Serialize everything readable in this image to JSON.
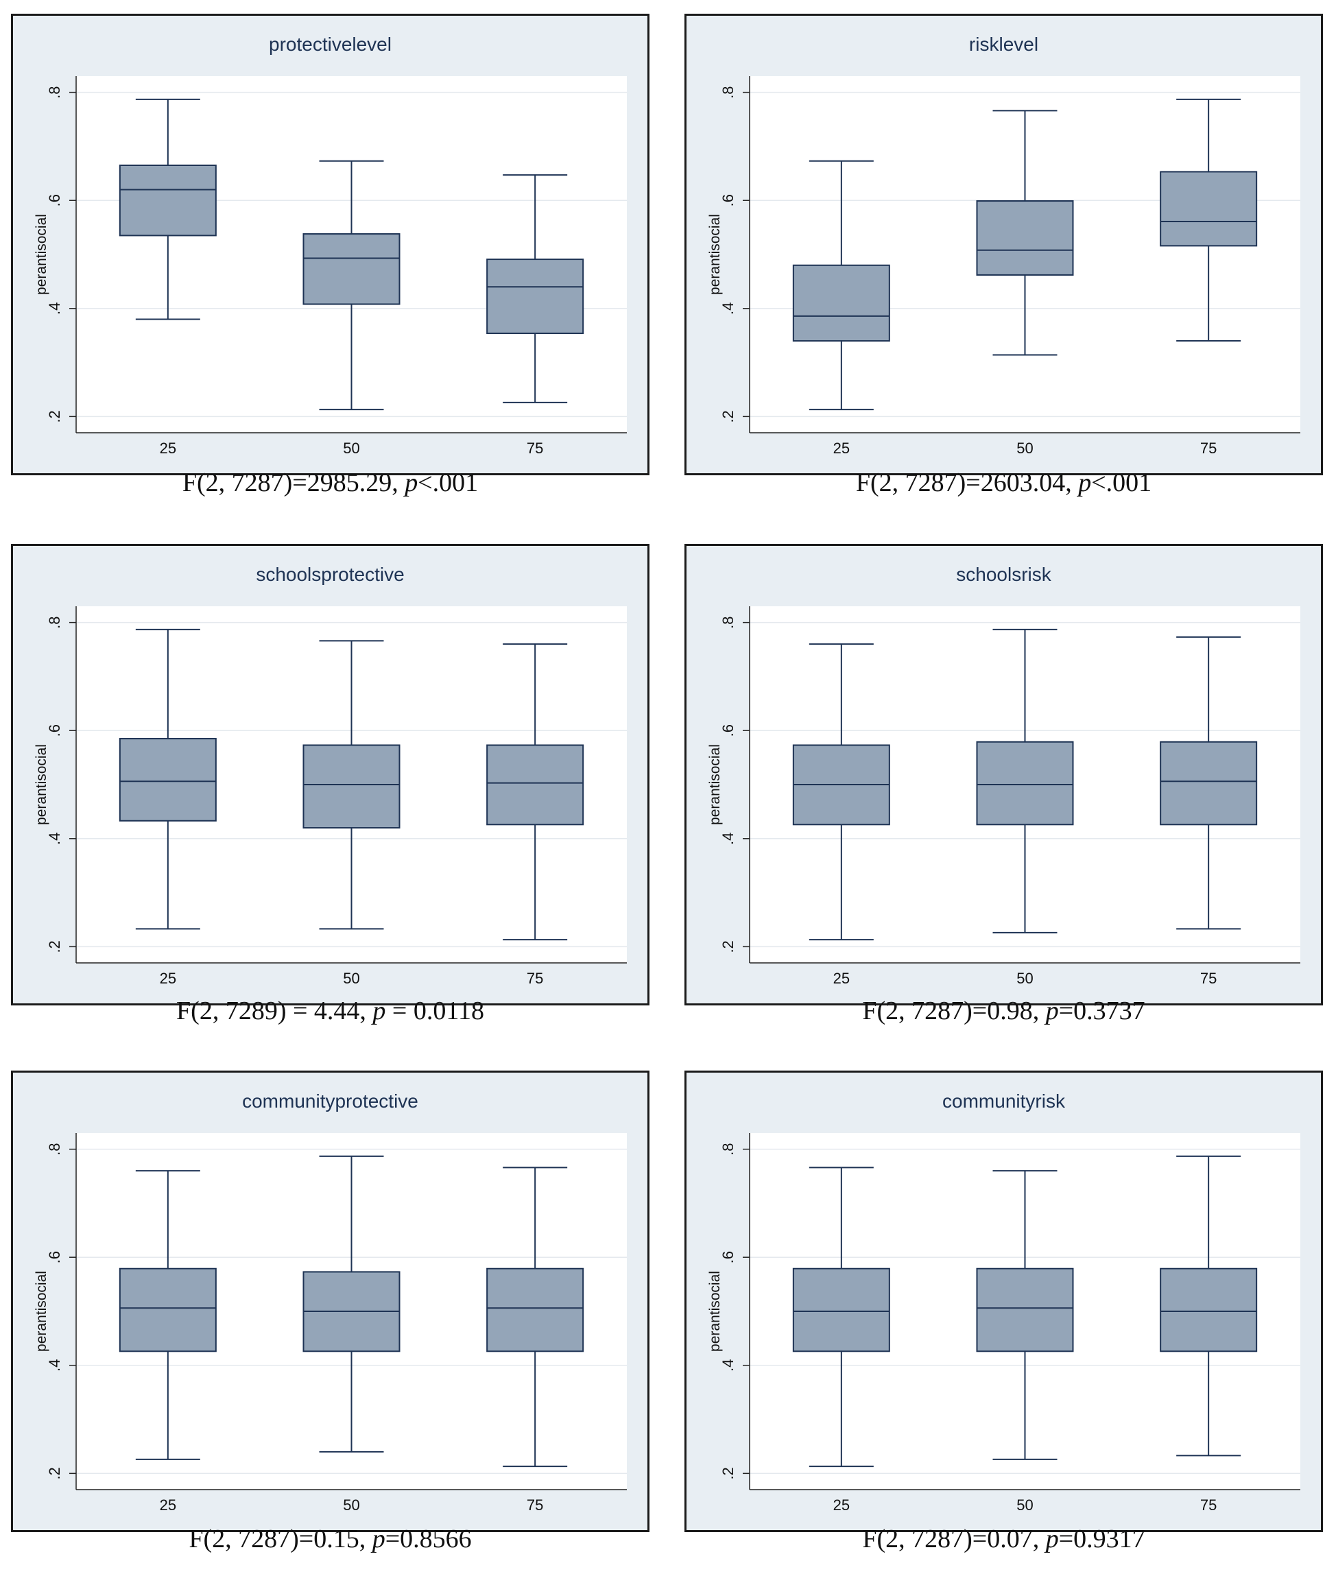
{
  "chart_data": [
    {
      "type": "box",
      "title": "protectivelevel",
      "ylabel": "perantisocial",
      "ylim": [
        0.17,
        0.83
      ],
      "yticks": [
        ".2",
        ".4",
        ".6",
        ".8"
      ],
      "ytick_values": [
        0.2,
        0.4,
        0.6,
        0.8
      ],
      "categories": [
        "25",
        "50",
        "75"
      ],
      "boxes": [
        {
          "min": 0.38,
          "q1": 0.535,
          "median": 0.62,
          "q3": 0.665,
          "max": 0.787
        },
        {
          "min": 0.213,
          "q1": 0.408,
          "median": 0.493,
          "q3": 0.538,
          "max": 0.673
        },
        {
          "min": 0.226,
          "q1": 0.354,
          "median": 0.44,
          "q3": 0.491,
          "max": 0.647
        }
      ],
      "grid": true,
      "caption": {
        "pre": "F(2, 7287)=2985.29, ",
        "p": "p",
        "post": "<.001"
      }
    },
    {
      "type": "box",
      "title": "risklevel",
      "ylabel": "perantisocial",
      "ylim": [
        0.17,
        0.83
      ],
      "yticks": [
        ".2",
        ".4",
        ".6",
        ".8"
      ],
      "ytick_values": [
        0.2,
        0.4,
        0.6,
        0.8
      ],
      "categories": [
        "25",
        "50",
        "75"
      ],
      "boxes": [
        {
          "min": 0.213,
          "q1": 0.34,
          "median": 0.386,
          "q3": 0.48,
          "max": 0.673
        },
        {
          "min": 0.314,
          "q1": 0.462,
          "median": 0.508,
          "q3": 0.599,
          "max": 0.766
        },
        {
          "min": 0.34,
          "q1": 0.516,
          "median": 0.561,
          "q3": 0.653,
          "max": 0.787
        }
      ],
      "grid": true,
      "caption": {
        "pre": "F(2, 7287)=2603.04, ",
        "p": "p",
        "post": "<.001"
      }
    },
    {
      "type": "box",
      "title": "schoolsprotective",
      "ylabel": "perantisocial",
      "ylim": [
        0.17,
        0.83
      ],
      "yticks": [
        ".2",
        ".4",
        ".6",
        ".8"
      ],
      "ytick_values": [
        0.2,
        0.4,
        0.6,
        0.8
      ],
      "categories": [
        "25",
        "50",
        "75"
      ],
      "boxes": [
        {
          "min": 0.233,
          "q1": 0.433,
          "median": 0.506,
          "q3": 0.585,
          "max": 0.787
        },
        {
          "min": 0.233,
          "q1": 0.42,
          "median": 0.5,
          "q3": 0.573,
          "max": 0.766
        },
        {
          "min": 0.213,
          "q1": 0.426,
          "median": 0.503,
          "q3": 0.573,
          "max": 0.76
        }
      ],
      "grid": true,
      "caption": {
        "pre": "F(2, 7289) = 4.44, ",
        "p": "p",
        "post": " = 0.0118"
      }
    },
    {
      "type": "box",
      "title": "schoolsrisk",
      "ylabel": "perantisocial",
      "ylim": [
        0.17,
        0.83
      ],
      "yticks": [
        ".2",
        ".4",
        ".6",
        ".8"
      ],
      "ytick_values": [
        0.2,
        0.4,
        0.6,
        0.8
      ],
      "categories": [
        "25",
        "50",
        "75"
      ],
      "boxes": [
        {
          "min": 0.213,
          "q1": 0.426,
          "median": 0.5,
          "q3": 0.573,
          "max": 0.76
        },
        {
          "min": 0.226,
          "q1": 0.426,
          "median": 0.5,
          "q3": 0.579,
          "max": 0.787
        },
        {
          "min": 0.233,
          "q1": 0.426,
          "median": 0.506,
          "q3": 0.579,
          "max": 0.773
        }
      ],
      "grid": true,
      "caption": {
        "pre": "F(2, 7287)=0.98, ",
        "p": "p",
        "post": "=0.3737"
      }
    },
    {
      "type": "box",
      "title": "communityprotective",
      "ylabel": "perantisocial",
      "ylim": [
        0.17,
        0.83
      ],
      "yticks": [
        ".2",
        ".4",
        ".6",
        ".8"
      ],
      "ytick_values": [
        0.2,
        0.4,
        0.6,
        0.8
      ],
      "categories": [
        "25",
        "50",
        "75"
      ],
      "boxes": [
        {
          "min": 0.226,
          "q1": 0.426,
          "median": 0.506,
          "q3": 0.579,
          "max": 0.76
        },
        {
          "min": 0.24,
          "q1": 0.426,
          "median": 0.5,
          "q3": 0.573,
          "max": 0.787
        },
        {
          "min": 0.213,
          "q1": 0.426,
          "median": 0.506,
          "q3": 0.579,
          "max": 0.766
        }
      ],
      "grid": true,
      "caption": {
        "pre": "F(2, 7287)=0.15, ",
        "p": "p",
        "post": "=0.8566"
      }
    },
    {
      "type": "box",
      "title": "communityrisk",
      "ylabel": "perantisocial",
      "ylim": [
        0.17,
        0.83
      ],
      "yticks": [
        ".2",
        ".4",
        ".6",
        ".8"
      ],
      "ytick_values": [
        0.2,
        0.4,
        0.6,
        0.8
      ],
      "categories": [
        "25",
        "50",
        "75"
      ],
      "boxes": [
        {
          "min": 0.213,
          "q1": 0.426,
          "median": 0.5,
          "q3": 0.579,
          "max": 0.766
        },
        {
          "min": 0.226,
          "q1": 0.426,
          "median": 0.506,
          "q3": 0.579,
          "max": 0.76
        },
        {
          "min": 0.233,
          "q1": 0.426,
          "median": 0.5,
          "q3": 0.579,
          "max": 0.787
        }
      ],
      "grid": true,
      "caption": {
        "pre": "F(2, 7287)=0.07, ",
        "p": "p",
        "post": "=0.9317"
      }
    }
  ],
  "colors": {
    "box_fill": "#94a5b8",
    "line": "#1e3354",
    "panel_bg": "#e8eef3",
    "plot_bg": "#ffffff",
    "grid": "#e4e9ee"
  }
}
